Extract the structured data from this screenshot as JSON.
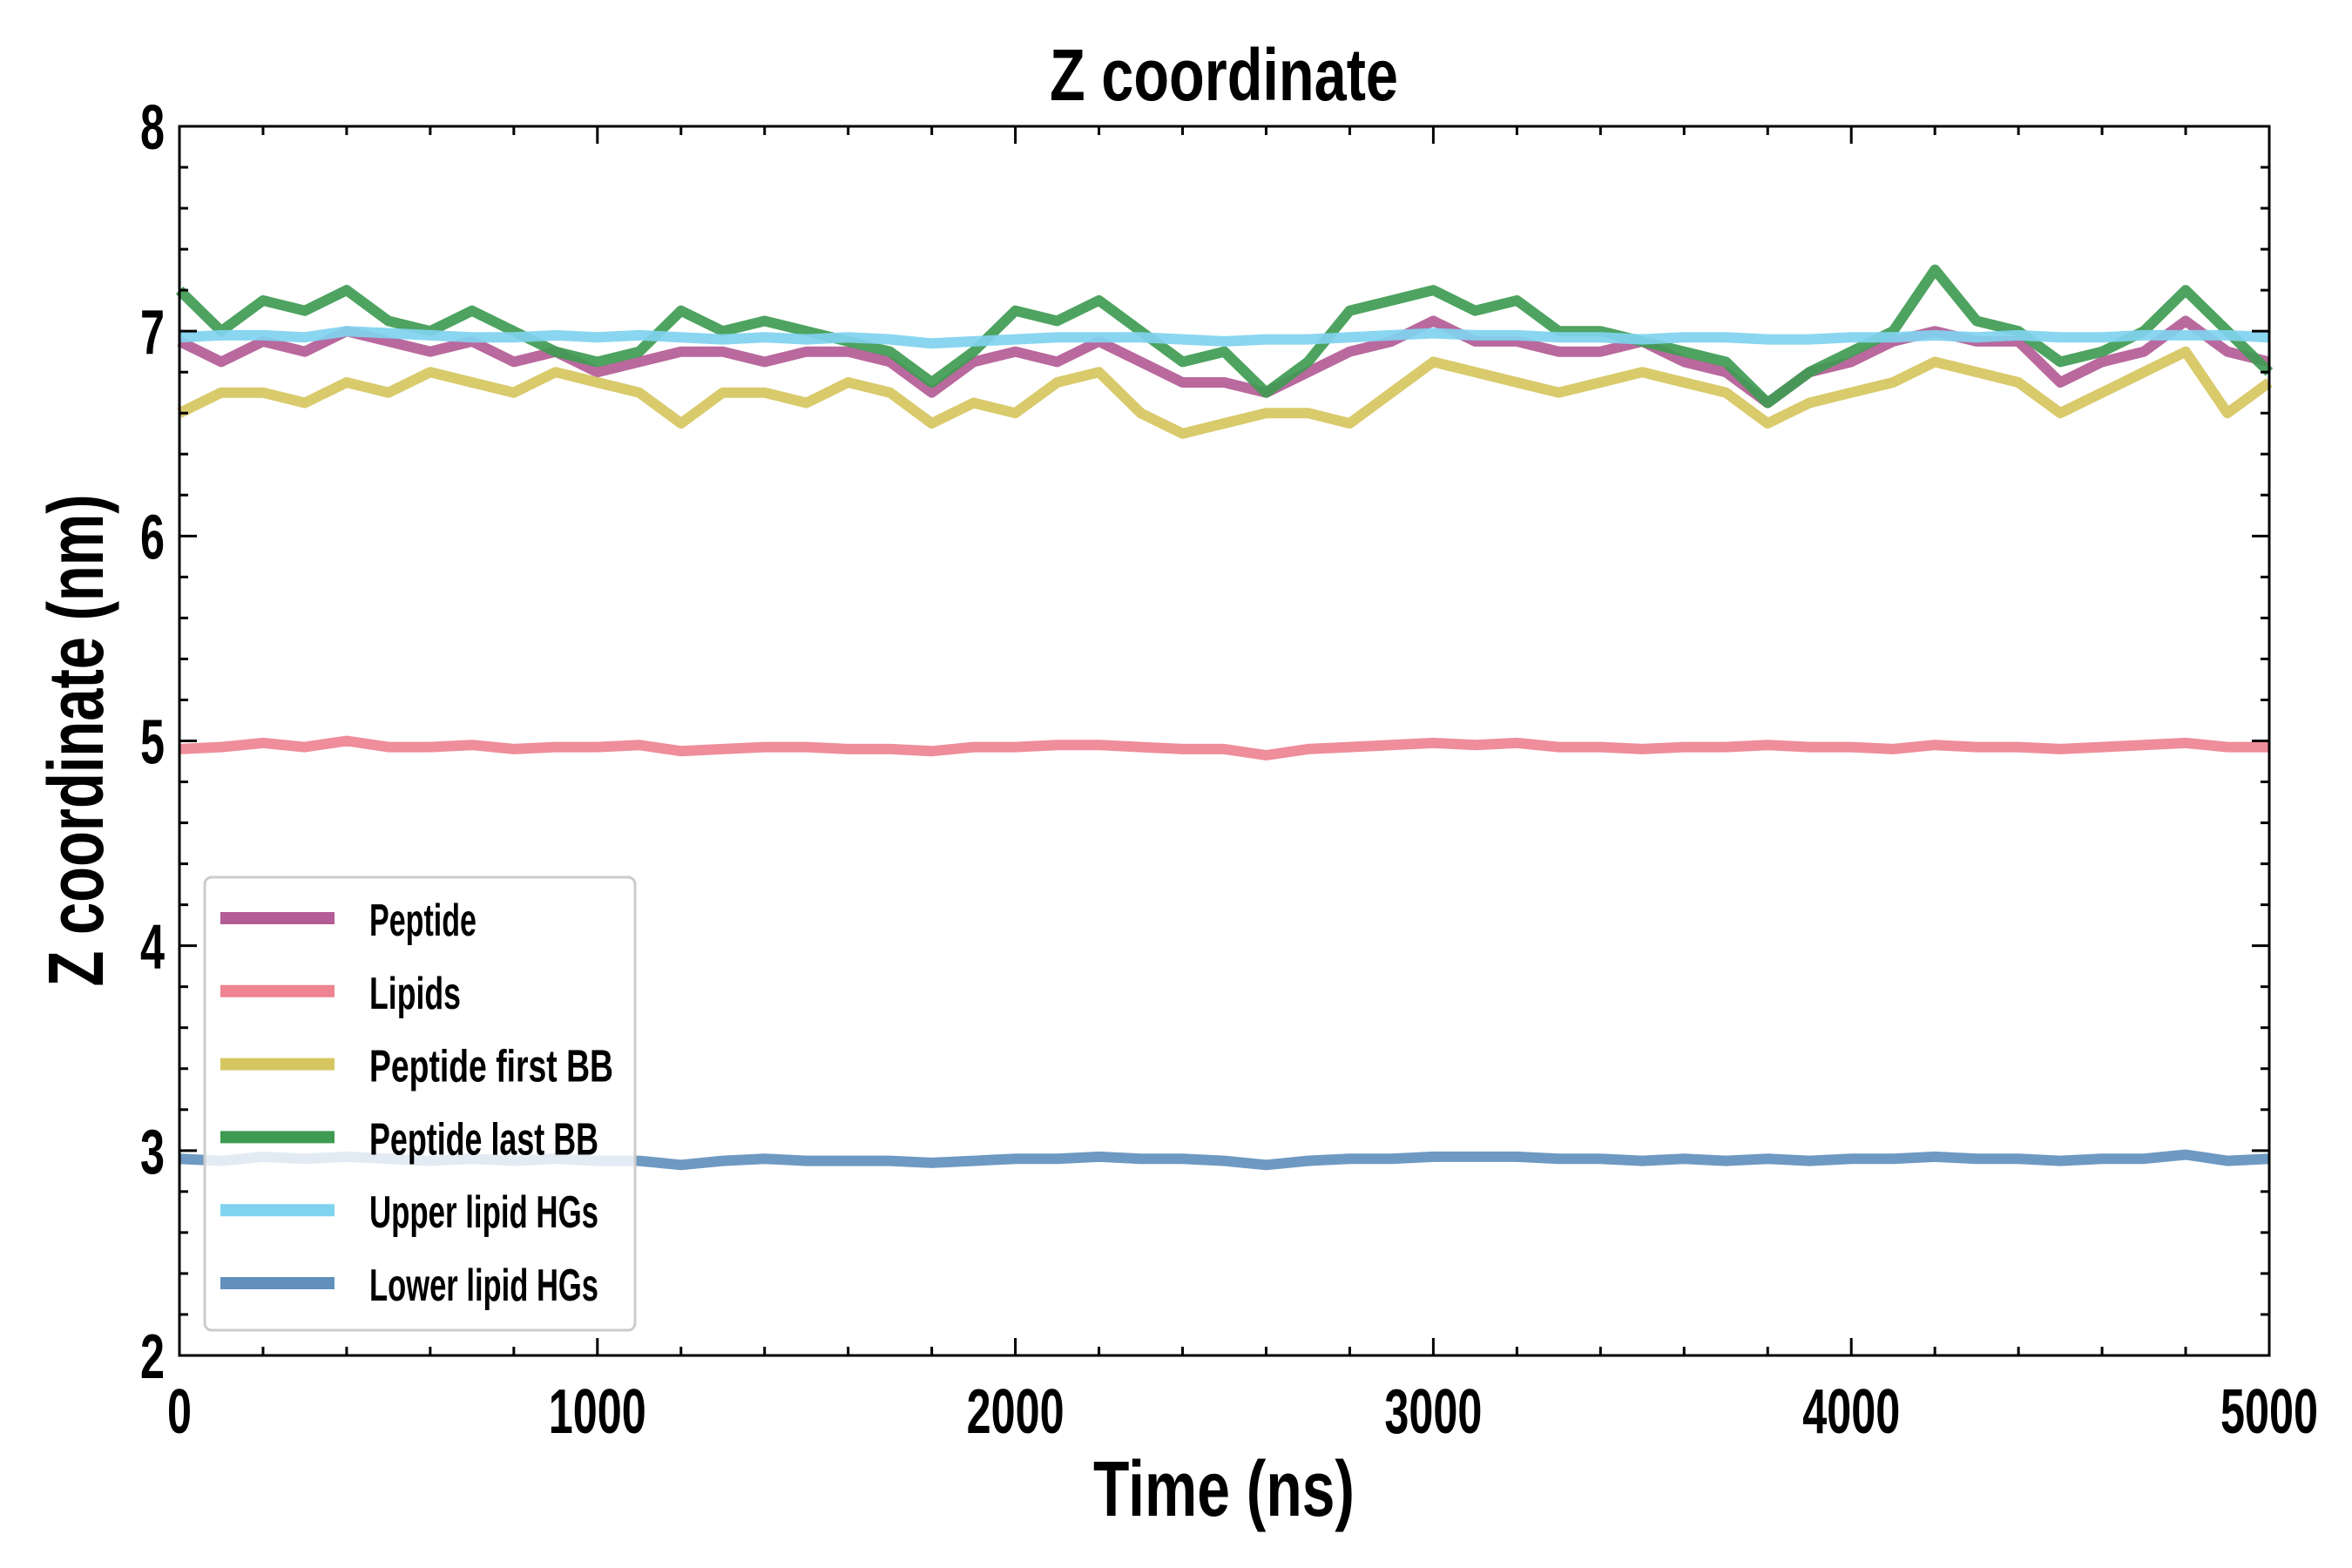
{
  "chart_data": {
    "type": "line",
    "title": "Z coordinate",
    "xlabel": "Time (ns)",
    "ylabel": "Z coordinate (nm)",
    "xlim": [
      0,
      5000
    ],
    "ylim": [
      2,
      8
    ],
    "xticks": [
      0,
      1000,
      2000,
      3000,
      4000,
      5000
    ],
    "xtick_labels": [
      "0",
      "1000",
      "2000",
      "3000",
      "4000",
      "5000"
    ],
    "yticks": [
      2,
      3,
      4,
      5,
      6,
      7,
      8
    ],
    "ytick_labels": [
      "2",
      "3",
      "4",
      "5",
      "6",
      "7",
      "8"
    ],
    "x_minor_step": 200,
    "y_minor_step": 0.2,
    "grid": false,
    "legend_position": "lower-left",
    "x_step": 100,
    "series": [
      {
        "name": "Peptide",
        "color": "#b35c95",
        "values": [
          6.95,
          6.85,
          6.95,
          6.9,
          7.0,
          6.95,
          6.9,
          6.95,
          6.85,
          6.9,
          6.8,
          6.85,
          6.9,
          6.9,
          6.85,
          6.9,
          6.9,
          6.85,
          6.7,
          6.85,
          6.9,
          6.85,
          6.95,
          6.85,
          6.75,
          6.75,
          6.7,
          6.8,
          6.9,
          6.95,
          7.05,
          6.95,
          6.95,
          6.9,
          6.9,
          6.95,
          6.85,
          6.8,
          6.65,
          6.8,
          6.85,
          6.95,
          7.0,
          6.95,
          6.95,
          6.75,
          6.85,
          6.9,
          7.05,
          6.9,
          6.85
        ]
      },
      {
        "name": "Lipids",
        "color": "#ee8391",
        "values": [
          4.96,
          4.97,
          4.99,
          4.97,
          5.0,
          4.97,
          4.97,
          4.98,
          4.96,
          4.97,
          4.97,
          4.98,
          4.95,
          4.96,
          4.97,
          4.97,
          4.96,
          4.96,
          4.95,
          4.97,
          4.97,
          4.98,
          4.98,
          4.97,
          4.96,
          4.96,
          4.93,
          4.96,
          4.97,
          4.98,
          4.99,
          4.98,
          4.99,
          4.97,
          4.97,
          4.96,
          4.97,
          4.97,
          4.98,
          4.97,
          4.97,
          4.96,
          4.98,
          4.97,
          4.97,
          4.96,
          4.97,
          4.98,
          4.99,
          4.97,
          4.97
        ]
      },
      {
        "name": "Peptide first BB",
        "color": "#d6c660",
        "values": [
          6.6,
          6.7,
          6.7,
          6.65,
          6.75,
          6.7,
          6.8,
          6.75,
          6.7,
          6.8,
          6.75,
          6.7,
          6.55,
          6.7,
          6.7,
          6.65,
          6.75,
          6.7,
          6.55,
          6.65,
          6.6,
          6.75,
          6.8,
          6.6,
          6.5,
          6.55,
          6.6,
          6.6,
          6.55,
          6.7,
          6.85,
          6.8,
          6.75,
          6.7,
          6.75,
          6.8,
          6.75,
          6.7,
          6.55,
          6.65,
          6.7,
          6.75,
          6.85,
          6.8,
          6.75,
          6.6,
          6.7,
          6.8,
          6.9,
          6.6,
          6.75
        ]
      },
      {
        "name": "Peptide last BB",
        "color": "#3f9b52",
        "values": [
          7.2,
          7.0,
          7.15,
          7.1,
          7.2,
          7.05,
          7.0,
          7.1,
          7.0,
          6.9,
          6.85,
          6.9,
          7.1,
          7.0,
          7.05,
          7.0,
          6.95,
          6.9,
          6.75,
          6.9,
          7.1,
          7.05,
          7.15,
          7.0,
          6.85,
          6.9,
          6.7,
          6.85,
          7.1,
          7.15,
          7.2,
          7.1,
          7.15,
          7.0,
          7.0,
          6.95,
          6.9,
          6.85,
          6.65,
          6.8,
          6.9,
          7.0,
          7.3,
          7.05,
          7.0,
          6.85,
          6.9,
          7.0,
          7.2,
          7.0,
          6.8
        ]
      },
      {
        "name": "Upper lipid HGs",
        "color": "#80d3ef",
        "values": [
          6.97,
          6.98,
          6.98,
          6.97,
          7.0,
          6.99,
          6.98,
          6.97,
          6.97,
          6.98,
          6.97,
          6.98,
          6.97,
          6.96,
          6.97,
          6.96,
          6.97,
          6.96,
          6.94,
          6.95,
          6.96,
          6.97,
          6.97,
          6.97,
          6.96,
          6.95,
          6.96,
          6.96,
          6.97,
          6.98,
          6.99,
          6.98,
          6.98,
          6.97,
          6.97,
          6.96,
          6.97,
          6.97,
          6.96,
          6.96,
          6.97,
          6.97,
          6.98,
          6.97,
          6.98,
          6.97,
          6.97,
          6.98,
          6.98,
          6.98,
          6.97
        ]
      },
      {
        "name": "Lower lipid HGs",
        "color": "#6290bd",
        "values": [
          2.96,
          2.95,
          2.97,
          2.96,
          2.97,
          2.96,
          2.95,
          2.96,
          2.95,
          2.96,
          2.95,
          2.95,
          2.93,
          2.95,
          2.96,
          2.95,
          2.95,
          2.95,
          2.94,
          2.95,
          2.96,
          2.96,
          2.97,
          2.96,
          2.96,
          2.95,
          2.93,
          2.95,
          2.96,
          2.96,
          2.97,
          2.97,
          2.97,
          2.96,
          2.96,
          2.95,
          2.96,
          2.95,
          2.96,
          2.95,
          2.96,
          2.96,
          2.97,
          2.96,
          2.96,
          2.95,
          2.96,
          2.96,
          2.98,
          2.95,
          2.96
        ]
      }
    ]
  }
}
